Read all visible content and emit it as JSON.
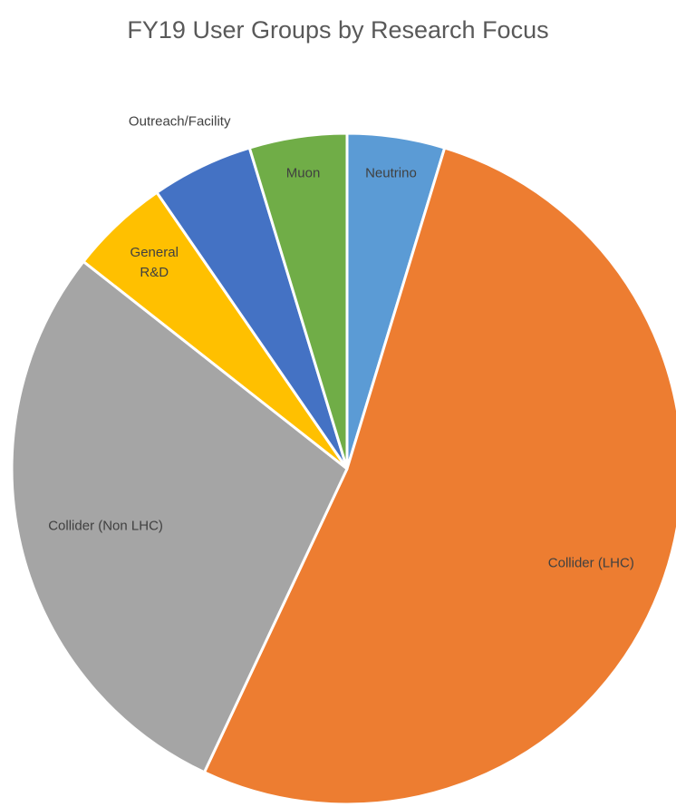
{
  "chart_data": {
    "type": "pie",
    "title": "FY19 User Groups by Research Focus",
    "categories": [
      "Neutrino",
      "Collider (LHC)",
      "Collider (Non LHC)",
      "General R&D",
      "Outreach/Facility",
      "Muon"
    ],
    "values": [
      4.7,
      52.3,
      28.6,
      4.8,
      4.9,
      4.7
    ],
    "colors": [
      "#5b9bd5",
      "#ed7d31",
      "#a5a5a5",
      "#ffc000",
      "#4472c4",
      "#70ad47"
    ]
  }
}
